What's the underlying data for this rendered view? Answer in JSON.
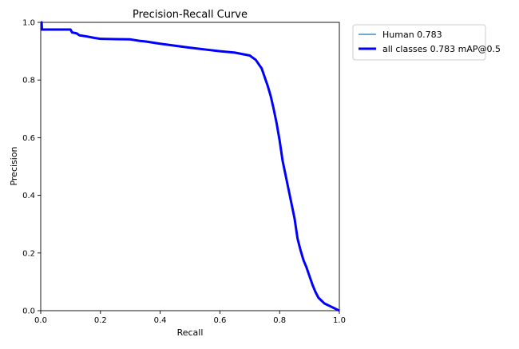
{
  "chart_data": {
    "type": "line",
    "title": "Precision-Recall Curve",
    "xlabel": "Recall",
    "ylabel": "Precision",
    "xlim": [
      0,
      1
    ],
    "ylim": [
      0,
      1
    ],
    "xticks": [
      "0.0",
      "0.2",
      "0.4",
      "0.6",
      "0.8",
      "1.0"
    ],
    "yticks": [
      "0.0",
      "0.2",
      "0.4",
      "0.6",
      "0.8",
      "1.0"
    ],
    "grid": false,
    "legend_position": "outside-top-right",
    "legend": [
      {
        "label": "Human 0.783",
        "color": "#1f77b4",
        "style": "thin"
      },
      {
        "label": "all classes 0.783 mAP@0.5",
        "color": "#0000ff",
        "style": "thick"
      }
    ],
    "series": [
      {
        "name": "all classes 0.783 mAP@0.5",
        "color": "#0000ff",
        "x": [
          0.0,
          0.003,
          0.004,
          0.01,
          0.05,
          0.1,
          0.105,
          0.12,
          0.13,
          0.15,
          0.18,
          0.2,
          0.25,
          0.3,
          0.33,
          0.35,
          0.4,
          0.45,
          0.5,
          0.55,
          0.6,
          0.65,
          0.7,
          0.72,
          0.74,
          0.75,
          0.76,
          0.77,
          0.78,
          0.79,
          0.8,
          0.81,
          0.82,
          0.83,
          0.84,
          0.85,
          0.86,
          0.87,
          0.88,
          0.89,
          0.9,
          0.91,
          0.92,
          0.93,
          0.94,
          0.95,
          0.96,
          0.97,
          0.98,
          0.99,
          1.0
        ],
        "y": [
          1.0,
          1.0,
          0.975,
          0.975,
          0.975,
          0.975,
          0.965,
          0.962,
          0.955,
          0.952,
          0.946,
          0.943,
          0.942,
          0.941,
          0.936,
          0.934,
          0.926,
          0.919,
          0.912,
          0.906,
          0.9,
          0.895,
          0.885,
          0.87,
          0.84,
          0.81,
          0.78,
          0.745,
          0.7,
          0.65,
          0.59,
          0.52,
          0.47,
          0.42,
          0.37,
          0.32,
          0.25,
          0.21,
          0.175,
          0.15,
          0.12,
          0.09,
          0.065,
          0.045,
          0.035,
          0.025,
          0.02,
          0.015,
          0.01,
          0.005,
          0.0
        ]
      }
    ]
  }
}
